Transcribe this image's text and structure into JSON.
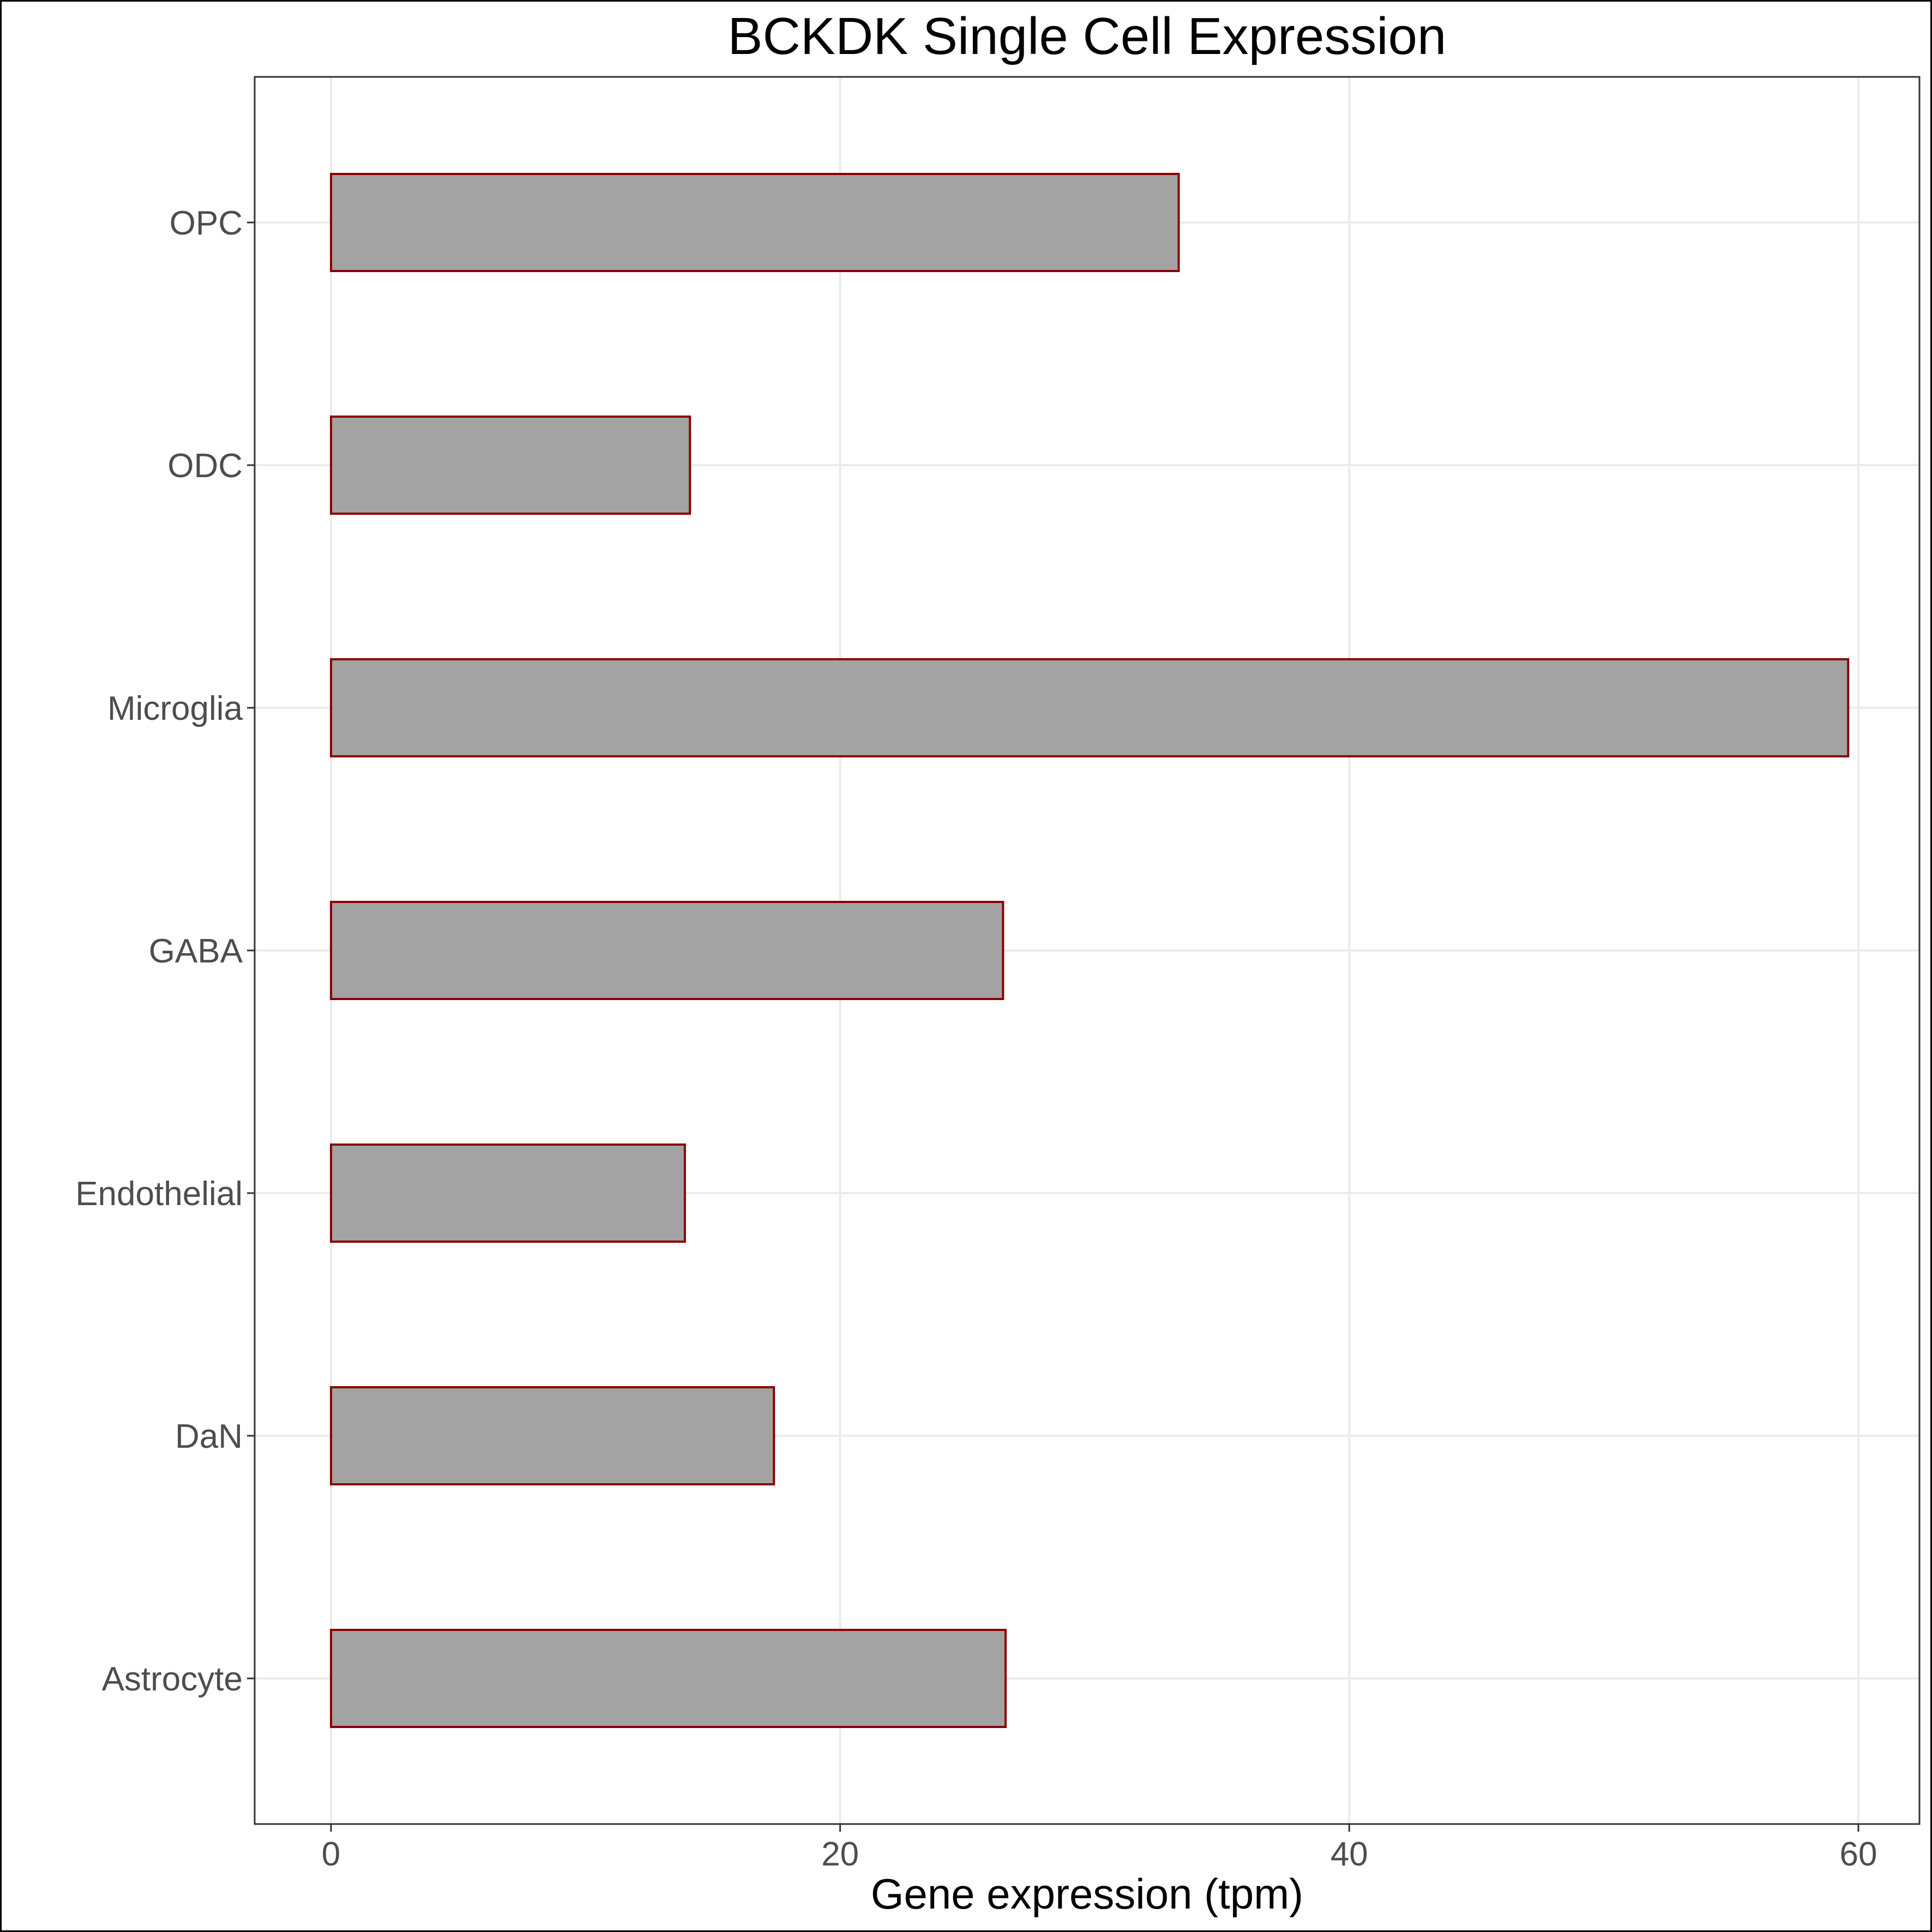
{
  "chart_data": {
    "type": "bar",
    "orientation": "horizontal",
    "title": "BCKDK Single Cell Expression",
    "xlabel": "Gene expression (tpm)",
    "ylabel": "",
    "xlim": [
      -3,
      62.4
    ],
    "x_ticks": [
      0,
      20,
      40,
      60
    ],
    "x_tick_labels": [
      "0",
      "20",
      "40",
      "60"
    ],
    "categories": [
      "Astrocyte",
      "DaN",
      "Endothelial",
      "GABA",
      "Microglia",
      "ODC",
      "OPC"
    ],
    "values": [
      26.5,
      17.4,
      13.9,
      26.4,
      59.6,
      14.1,
      33.3
    ],
    "grid": true,
    "legend": "none",
    "bar_fill": "#a3a3a3",
    "bar_stroke": "#8b0000"
  }
}
